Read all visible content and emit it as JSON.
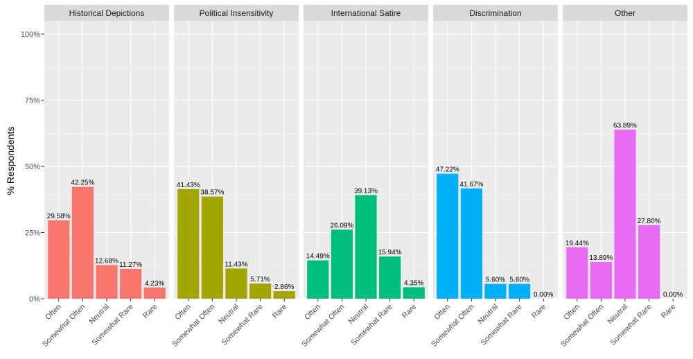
{
  "chart_data": {
    "type": "bar",
    "ylabel": "% Respondents",
    "ylim": [
      0,
      1.05
    ],
    "y_ticks": [
      {
        "value": 0,
        "label": "0%"
      },
      {
        "value": 0.25,
        "label": "25%"
      },
      {
        "value": 0.5,
        "label": "50%"
      },
      {
        "value": 0.75,
        "label": "75%"
      },
      {
        "value": 1.0,
        "label": "100%"
      }
    ],
    "grid": true,
    "legend": "none",
    "categories": [
      "Often",
      "Somewhat Often",
      "Neutral",
      "Somewhat Rare",
      "Rare"
    ],
    "facets": [
      {
        "title": "Historical Depictions",
        "color": "#F8766D",
        "values": [
          0.2958,
          0.4225,
          0.1268,
          0.1127,
          0.0423
        ],
        "labels": [
          "29.58%",
          "42.25%",
          "12.68%",
          "11.27%",
          "4.23%"
        ]
      },
      {
        "title": "Political Insensitivity",
        "color": "#A3A500",
        "values": [
          0.4143,
          0.3857,
          0.1143,
          0.0571,
          0.0286
        ],
        "labels": [
          "41.43%",
          "38.57%",
          "11.43%",
          "5.71%",
          "2.86%"
        ]
      },
      {
        "title": "International Satire",
        "color": "#00BF7D",
        "values": [
          0.1449,
          0.2609,
          0.3913,
          0.1594,
          0.0435
        ],
        "labels": [
          "14.49%",
          "26.09%",
          "39.13%",
          "15.94%",
          "4.35%"
        ]
      },
      {
        "title": "Discrimination",
        "color": "#00B0F6",
        "values": [
          0.4722,
          0.4167,
          0.056,
          0.056,
          0.0
        ],
        "labels": [
          "47.22%",
          "41.67%",
          "5.60%",
          "5.60%",
          "0.00%"
        ]
      },
      {
        "title": "Other",
        "color": "#E76BF3",
        "values": [
          0.1944,
          0.1389,
          0.6389,
          0.278,
          0.0
        ],
        "labels": [
          "19.44%",
          "13.89%",
          "63.89%",
          "27.80%",
          "0.00%"
        ]
      }
    ]
  }
}
